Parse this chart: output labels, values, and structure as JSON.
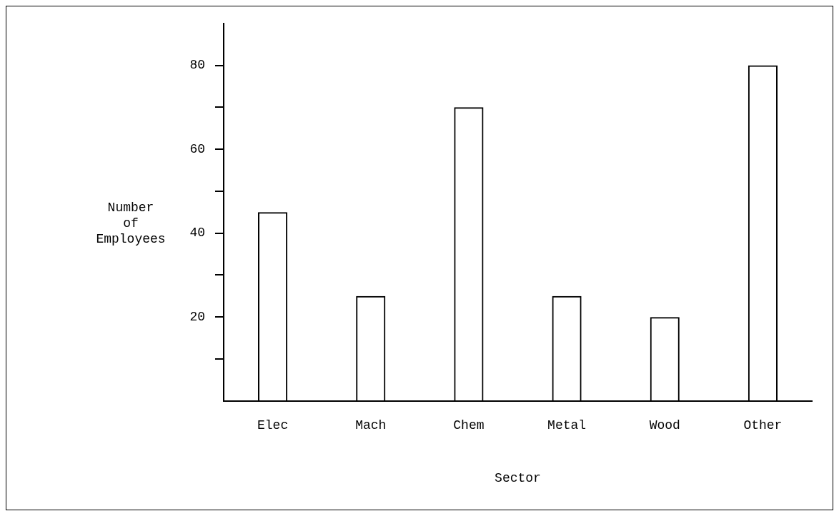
{
  "chart_data": {
    "type": "bar",
    "xlabel": "Sector",
    "ylabel": "Number of Employees",
    "categories": [
      "Elec",
      "Mach",
      "Chem",
      "Metal",
      "Wood",
      "Other"
    ],
    "values": [
      45,
      25,
      70,
      25,
      20,
      80
    ],
    "color": "#000000",
    "ylim": [
      0,
      90
    ],
    "yticks": [
      {
        "value": 10,
        "label": null
      },
      20,
      {
        "value": 30,
        "label": null
      },
      40,
      {
        "value": 50,
        "label": null
      },
      60,
      {
        "value": 70,
        "label": null
      },
      80
    ],
    "grid": false,
    "legend": false
  }
}
